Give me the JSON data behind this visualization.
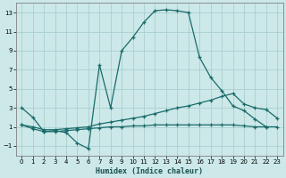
{
  "xlabel": "Humidex (Indice chaleur)",
  "bg_color": "#cce8e8",
  "line_color": "#1a6b6b",
  "grid_color": "#aad0d0",
  "xlim": [
    -0.5,
    23.5
  ],
  "ylim": [
    -2,
    14
  ],
  "xticks": [
    0,
    1,
    2,
    3,
    4,
    5,
    6,
    7,
    8,
    9,
    10,
    11,
    12,
    13,
    14,
    15,
    16,
    17,
    18,
    19,
    20,
    21,
    22,
    23
  ],
  "yticks": [
    -1,
    1,
    3,
    5,
    7,
    9,
    11,
    13
  ],
  "line1_x": [
    0,
    1,
    2,
    3,
    4,
    5,
    6,
    7,
    8,
    9,
    10,
    11,
    12,
    13,
    14,
    15,
    16,
    17,
    18,
    19,
    20,
    21,
    22
  ],
  "line1_y": [
    3.0,
    2.0,
    0.5,
    0.6,
    0.4,
    -0.7,
    -1.3,
    7.5,
    3.0,
    9.0,
    10.4,
    12.0,
    13.2,
    13.3,
    13.2,
    13.0,
    8.3,
    6.2,
    4.8,
    3.2,
    2.7,
    1.8,
    1.0
  ],
  "line2_x": [
    0,
    1,
    2,
    3,
    4,
    5,
    6,
    7,
    8,
    9,
    10,
    11,
    12,
    13,
    14,
    15,
    16,
    17,
    18,
    19,
    20,
    21,
    22,
    23
  ],
  "line2_y": [
    1.2,
    1.0,
    0.7,
    0.7,
    0.8,
    0.9,
    1.0,
    1.3,
    1.5,
    1.7,
    1.9,
    2.1,
    2.4,
    2.7,
    3.0,
    3.2,
    3.5,
    3.8,
    4.2,
    4.5,
    3.4,
    3.0,
    2.8,
    1.9
  ],
  "line3_x": [
    0,
    1,
    2,
    3,
    4,
    5,
    6,
    7,
    8,
    9,
    10,
    11,
    12,
    13,
    14,
    15,
    16,
    17,
    18,
    19,
    20,
    21,
    22,
    23
  ],
  "line3_y": [
    1.2,
    0.8,
    0.5,
    0.5,
    0.6,
    0.7,
    0.8,
    0.9,
    1.0,
    1.0,
    1.1,
    1.1,
    1.2,
    1.2,
    1.2,
    1.2,
    1.2,
    1.2,
    1.2,
    1.2,
    1.1,
    1.0,
    1.0,
    1.0
  ]
}
